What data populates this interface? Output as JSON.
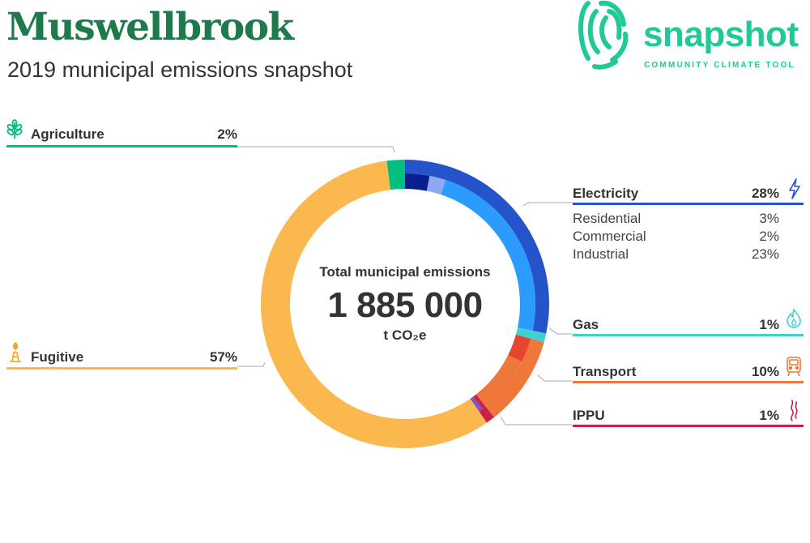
{
  "header": {
    "title": "Muswellbrook",
    "subtitle": "2019 municipal emissions snapshot"
  },
  "logo": {
    "wordmark": "snapshot",
    "tagline": "COMMUNITY CLIMATE TOOL",
    "color": "#20c997"
  },
  "center": {
    "label": "Total municipal emissions",
    "total": "1 885 000",
    "unit": "t CO₂e"
  },
  "categories": {
    "agriculture": {
      "label": "Agriculture",
      "pct": "2%",
      "color": "#00c07f",
      "icon": "wheat-icon"
    },
    "fugitive": {
      "label": "Fugitive",
      "pct": "57%",
      "color": "#fbb84f",
      "icon": "flare-stack-icon"
    },
    "electricity": {
      "label": "Electricity",
      "pct": "28%",
      "color": "#2553c9",
      "icon": "lightning-icon",
      "subs": [
        {
          "label": "Residential",
          "pct": "3%"
        },
        {
          "label": "Commercial",
          "pct": "2%"
        },
        {
          "label": "Industrial",
          "pct": "23%"
        }
      ]
    },
    "gas": {
      "label": "Gas",
      "pct": "1%",
      "color": "#3fd0d4",
      "icon": "flame-icon"
    },
    "transport": {
      "label": "Transport",
      "pct": "10%",
      "color": "#f0773a",
      "icon": "train-icon"
    },
    "ippu": {
      "label": "IPPU",
      "pct": "1%",
      "color": "#c8224b",
      "icon": "smoke-icon"
    }
  },
  "chart_data": {
    "type": "pie",
    "title": "Total municipal emissions",
    "total": 1885000,
    "unit": "t CO2e",
    "slices": [
      {
        "name": "Electricity",
        "value": 28,
        "color": "#2553c9",
        "subs": [
          {
            "name": "Residential",
            "value": 3,
            "color": "#0a1f8f"
          },
          {
            "name": "Commercial",
            "value": 2,
            "color": "#8fa8f0"
          },
          {
            "name": "Industrial",
            "value": 23,
            "color": "#2b9bfd"
          }
        ]
      },
      {
        "name": "Gas",
        "value": 1,
        "color": "#3fd0d4"
      },
      {
        "name": "Transport",
        "value": 10,
        "color": "#f0773a",
        "subs": [
          {
            "name": "",
            "value": 3,
            "color": "#e8452f"
          },
          {
            "name": "",
            "value": 7,
            "color": "#f0773a"
          }
        ]
      },
      {
        "name": "IPPU",
        "value": 1,
        "color": "#c8224b",
        "subs": [
          {
            "name": "",
            "value": 0.5,
            "color": "#c8224b"
          },
          {
            "name": "",
            "value": 0.5,
            "color": "#7a55c6"
          }
        ]
      },
      {
        "name": "Fugitive",
        "value": 57,
        "color": "#fbb84f"
      },
      {
        "name": "Agriculture",
        "value": 2,
        "color": "#00c07f"
      }
    ]
  }
}
